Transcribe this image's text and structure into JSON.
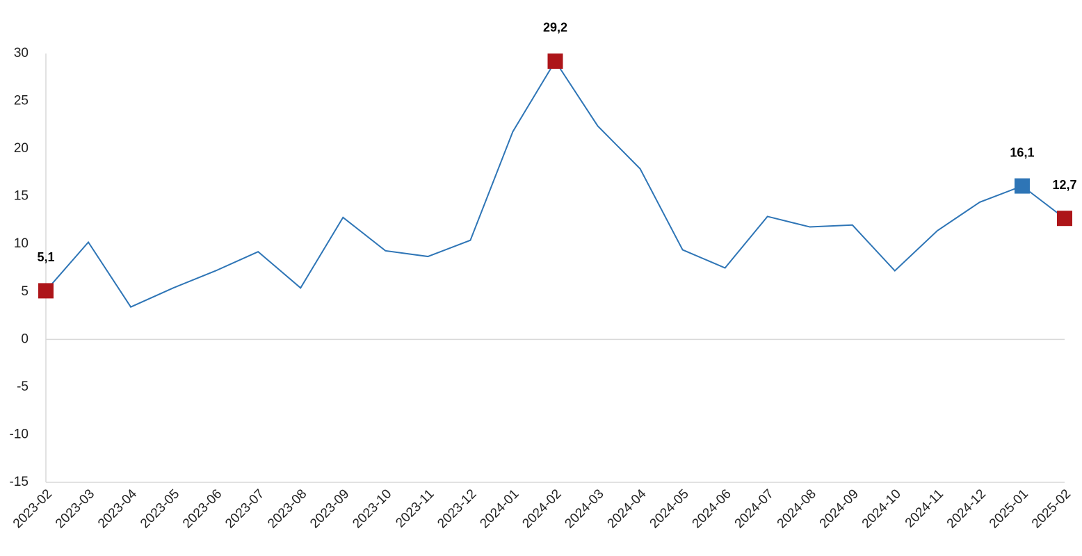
{
  "chart_data": {
    "type": "line",
    "categories": [
      "2023-02",
      "2023-03",
      "2023-04",
      "2023-05",
      "2023-06",
      "2023-07",
      "2023-08",
      "2023-09",
      "2023-10",
      "2023-11",
      "2023-12",
      "2024-01",
      "2024-02",
      "2024-03",
      "2024-04",
      "2024-05",
      "2024-06",
      "2024-07",
      "2024-08",
      "2024-09",
      "2024-10",
      "2024-11",
      "2024-12",
      "2025-01",
      "2025-02"
    ],
    "values": [
      5.1,
      10.2,
      3.4,
      5.4,
      7.2,
      9.2,
      5.4,
      12.8,
      9.3,
      8.7,
      10.4,
      21.8,
      29.2,
      22.4,
      17.9,
      9.4,
      7.5,
      12.9,
      11.8,
      12.0,
      7.2,
      11.4,
      14.4,
      16.1,
      12.7
    ],
    "value_labels": [
      "5,1",
      null,
      null,
      null,
      null,
      null,
      null,
      null,
      null,
      null,
      null,
      null,
      "29,2",
      null,
      null,
      null,
      null,
      null,
      null,
      null,
      null,
      null,
      null,
      "16,1",
      "12,7"
    ],
    "marker_colors": [
      "#ad1519",
      null,
      null,
      null,
      null,
      null,
      null,
      null,
      null,
      null,
      null,
      null,
      "#ad1519",
      null,
      null,
      null,
      null,
      null,
      null,
      null,
      null,
      null,
      null,
      "#2e75b6",
      "#ad1519"
    ],
    "color": "#2e75b6",
    "ylim": [
      -15,
      30
    ],
    "yticks": [
      -15,
      -10,
      -5,
      0,
      5,
      10,
      15,
      20,
      25,
      30
    ],
    "grid": false
  }
}
